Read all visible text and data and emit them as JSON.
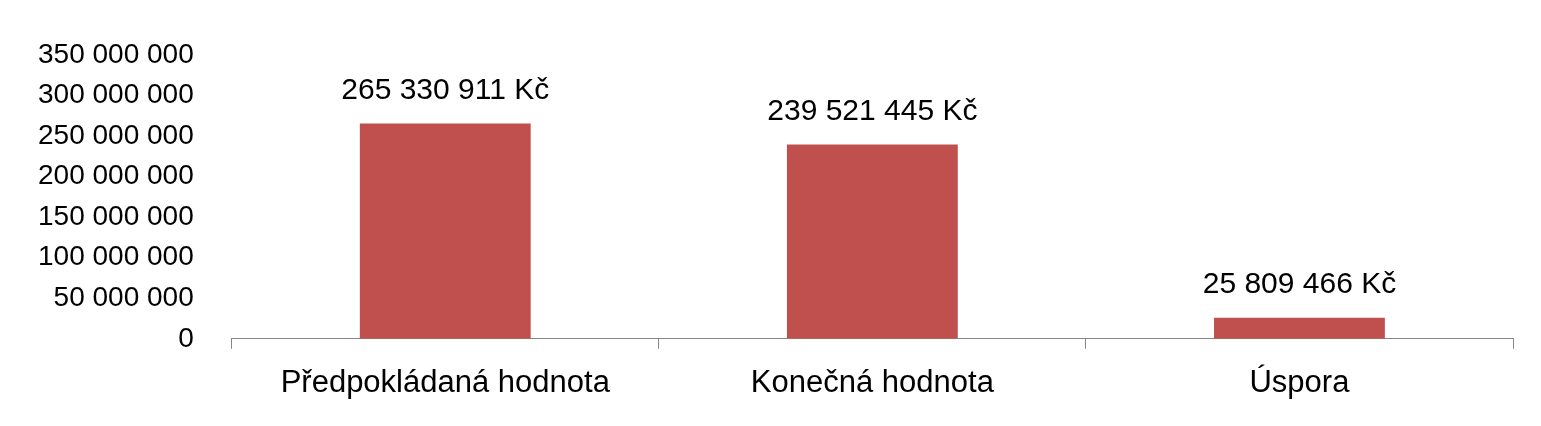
{
  "chart_data": {
    "type": "bar",
    "categories": [
      "Předpokládaná hodnota",
      "Konečná hodnota",
      "Úspora"
    ],
    "values": [
      265330911,
      239521445,
      25809466
    ],
    "value_labels": [
      "265 330 911 Kč",
      "239 521 445 Kč",
      "25 809 466 Kč"
    ],
    "color": "#c0504d",
    "ylim": [
      0,
      350000000
    ],
    "yticks": [
      0,
      {
        "value": 50000000,
        "label": "50 000 000"
      },
      {
        "value": 100000000,
        "label": "100 000 000"
      },
      {
        "value": 150000000,
        "label": "150 000 000"
      },
      {
        "value": 200000000,
        "label": "200 000 000"
      },
      {
        "value": 250000000,
        "label": "250 000 000"
      },
      {
        "value": 300000000,
        "label": "300 000 000"
      },
      {
        "value": 350000000,
        "label": "350 000 000"
      }
    ]
  }
}
